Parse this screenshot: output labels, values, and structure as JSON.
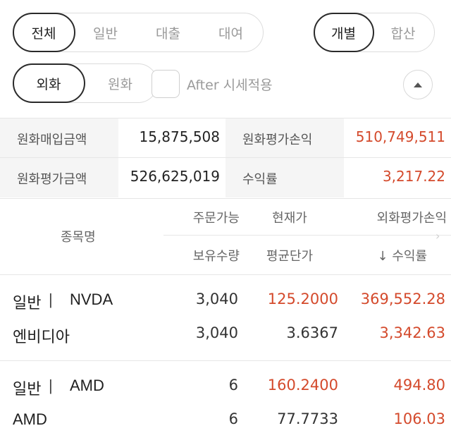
{
  "filters": {
    "type_tabs": [
      "전체",
      "일반",
      "대출",
      "대여"
    ],
    "view_tabs": [
      "개별",
      "합산"
    ],
    "currency_tabs": [
      "외화",
      "원화"
    ],
    "after_checkbox_label": "After 시세적용"
  },
  "summary": {
    "krw_purchase_label": "원화매입금액",
    "krw_purchase_value": "15,875,508",
    "krw_pnl_label": "원화평가손익",
    "krw_pnl_value": "510,749,511",
    "krw_eval_label": "원화평가금액",
    "krw_eval_value": "526,625,019",
    "return_label": "수익률",
    "return_value": "3,217.22"
  },
  "table": {
    "headers": {
      "name": "종목명",
      "orderable": "주문가능",
      "current_price": "현재가",
      "fx_pnl": "외화평가손익",
      "holding_qty": "보유수량",
      "avg_price": "평균단가",
      "return": "↓ 수익률"
    },
    "rows": [
      {
        "type": "일반",
        "sep": "|",
        "ticker": "NVDA",
        "orderable": "3,040",
        "current_price": "125.2000",
        "fx_pnl": "369,552.28",
        "name": "엔비디아",
        "holding_qty": "3,040",
        "avg_price": "3.6367",
        "return": "3,342.63"
      },
      {
        "type": "일반",
        "sep": "|",
        "ticker": "AMD",
        "orderable": "6",
        "current_price": "160.2400",
        "fx_pnl": "494.80",
        "name": "AMD",
        "holding_qty": "6",
        "avg_price": "77.7733",
        "return": "106.03"
      }
    ]
  },
  "colors": {
    "positive": "#d44a2c",
    "border": "#e6e6e6",
    "label_bg": "#f5f5f5"
  }
}
